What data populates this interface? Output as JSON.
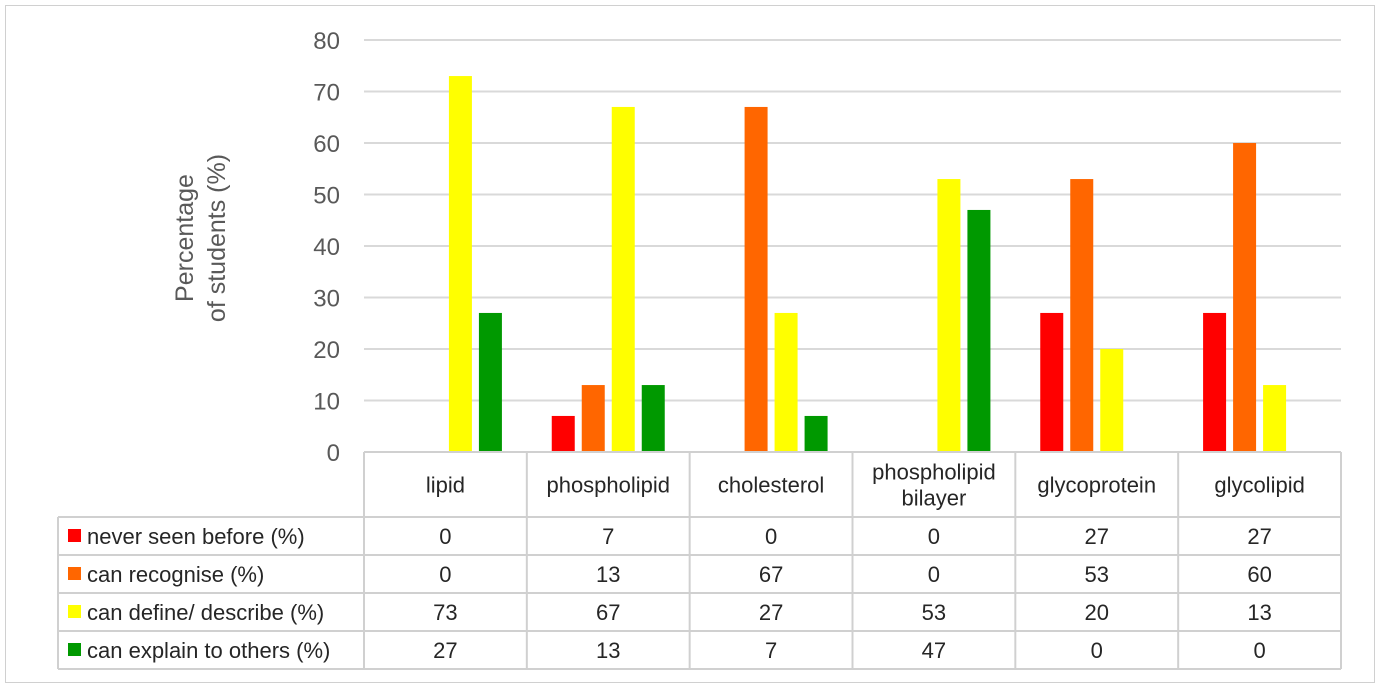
{
  "chart_data": {
    "type": "bar",
    "ylabel_lines": [
      "Percentage",
      "of students (%)"
    ],
    "ylim": [
      0,
      80
    ],
    "yticks": [
      0,
      10,
      20,
      30,
      40,
      50,
      60,
      70,
      80
    ],
    "grid": true,
    "legend": "data-table",
    "categories": [
      [
        "lipid"
      ],
      [
        "phospholipid"
      ],
      [
        "cholesterol"
      ],
      [
        "phospholipid",
        "bilayer"
      ],
      [
        "glycoprotein"
      ],
      [
        "glycolipid"
      ]
    ],
    "series": [
      {
        "name": "never seen before (%)",
        "color": "#ff0000",
        "values": [
          0,
          7,
          0,
          0,
          27,
          27
        ]
      },
      {
        "name": "can recognise (%)",
        "color": "#ff6600",
        "values": [
          0,
          13,
          67,
          0,
          53,
          60
        ]
      },
      {
        "name": "can define/ describe (%)",
        "color": "#ffff00",
        "values": [
          73,
          67,
          27,
          53,
          20,
          13
        ]
      },
      {
        "name": "can explain to others (%)",
        "color": "#009900",
        "values": [
          27,
          13,
          7,
          47,
          0,
          0
        ]
      }
    ]
  }
}
